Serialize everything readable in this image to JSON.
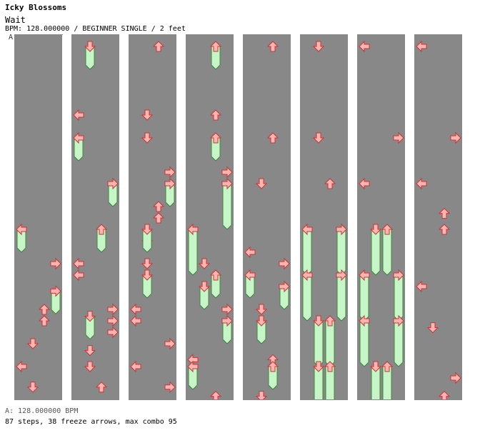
{
  "song": {
    "title": "Icky Blossoms",
    "subtitle": "Wait",
    "info": "BPM: 128.000000 / BEGINNER SINGLE / 2 feet",
    "bpm_marker_label": "A"
  },
  "footer": {
    "bpm_line": "A: 128.000000 BPM",
    "stats_line": "87 steps, 38 freeze arrows, max combo 95"
  },
  "colors": {
    "tap_fill": "#ffb4b4",
    "tap_stroke": "#cc3333",
    "freeze_fill": "#c8f5c8",
    "freeze_stroke": "#3a8a3a",
    "stripe_light": "#ffffff",
    "stripe_dark": "#cccccc"
  },
  "chart": {
    "columns": 8,
    "beats_per_column": 16,
    "lanes": [
      "left",
      "down",
      "up",
      "right"
    ],
    "notes": [
      {
        "c": 0,
        "b": 8.5,
        "l": "left",
        "len": 1
      },
      {
        "c": 0,
        "b": 10,
        "l": "right"
      },
      {
        "c": 0,
        "b": 11.2,
        "l": "right",
        "len": 1
      },
      {
        "c": 0,
        "b": 12,
        "l": "up"
      },
      {
        "c": 0,
        "b": 12.5,
        "l": "up"
      },
      {
        "c": 0,
        "b": 13.5,
        "l": "down"
      },
      {
        "c": 0,
        "b": 14.5,
        "l": "left"
      },
      {
        "c": 0,
        "b": 15.4,
        "l": "down"
      },
      {
        "c": 1,
        "b": 0.5,
        "l": "down",
        "len": 1
      },
      {
        "c": 1,
        "b": 3.5,
        "l": "left"
      },
      {
        "c": 1,
        "b": 4.5,
        "l": "left",
        "len": 1
      },
      {
        "c": 1,
        "b": 6.5,
        "l": "right",
        "len": 1
      },
      {
        "c": 1,
        "b": 12.3,
        "l": "down",
        "len": 1
      },
      {
        "c": 1,
        "b": 8.5,
        "l": "up",
        "len": 1
      },
      {
        "c": 1,
        "b": 10,
        "l": "left"
      },
      {
        "c": 1,
        "b": 10.5,
        "l": "left"
      },
      {
        "c": 1,
        "b": 12,
        "l": "right"
      },
      {
        "c": 1,
        "b": 12.5,
        "l": "right"
      },
      {
        "c": 1,
        "b": 13,
        "l": "right"
      },
      {
        "c": 1,
        "b": 13.8,
        "l": "down"
      },
      {
        "c": 1,
        "b": 14.5,
        "l": "down"
      },
      {
        "c": 1,
        "b": 15.4,
        "l": "up"
      },
      {
        "c": 2,
        "b": 0.5,
        "l": "up"
      },
      {
        "c": 2,
        "b": 3.5,
        "l": "down"
      },
      {
        "c": 2,
        "b": 4.5,
        "l": "down"
      },
      {
        "c": 2,
        "b": 6,
        "l": "right"
      },
      {
        "c": 2,
        "b": 6.5,
        "l": "right",
        "len": 1
      },
      {
        "c": 2,
        "b": 7.5,
        "l": "up"
      },
      {
        "c": 2,
        "b": 8,
        "l": "up"
      },
      {
        "c": 2,
        "b": 9,
        "l": "down"
      },
      {
        "c": 2,
        "b": 8.5,
        "l": "down",
        "len": 1
      },
      {
        "c": 2,
        "b": 10,
        "l": "down"
      },
      {
        "c": 2,
        "b": 10.5,
        "l": "down",
        "len": 1
      },
      {
        "c": 2,
        "b": 12,
        "l": "left"
      },
      {
        "c": 2,
        "b": 12.5,
        "l": "left"
      },
      {
        "c": 2,
        "b": 13.5,
        "l": "right"
      },
      {
        "c": 2,
        "b": 14.5,
        "l": "left"
      },
      {
        "c": 2,
        "b": 15.4,
        "l": "right"
      },
      {
        "c": 3,
        "b": 0.5,
        "l": "up",
        "len": 1
      },
      {
        "c": 3,
        "b": 3.5,
        "l": "up"
      },
      {
        "c": 3,
        "b": 4.5,
        "l": "up",
        "len": 1
      },
      {
        "c": 3,
        "b": 6,
        "l": "right"
      },
      {
        "c": 3,
        "b": 6.5,
        "l": "right",
        "len": 2
      },
      {
        "c": 3,
        "b": 8.5,
        "l": "left",
        "len": 2
      },
      {
        "c": 3,
        "b": 10.5,
        "l": "up",
        "len": 1
      },
      {
        "c": 3,
        "b": 10,
        "l": "down"
      },
      {
        "c": 3,
        "b": 11,
        "l": "down",
        "len": 1
      },
      {
        "c": 3,
        "b": 12,
        "l": "right"
      },
      {
        "c": 3,
        "b": 12.5,
        "l": "right",
        "len": 1
      },
      {
        "c": 3,
        "b": 14.2,
        "l": "left"
      },
      {
        "c": 3,
        "b": 14.5,
        "l": "left",
        "len": 1
      },
      {
        "c": 3,
        "b": 15.8,
        "l": "up"
      },
      {
        "c": 4,
        "b": 0.5,
        "l": "up"
      },
      {
        "c": 4,
        "b": 4.5,
        "l": "up"
      },
      {
        "c": 4,
        "b": 6.5,
        "l": "down"
      },
      {
        "c": 4,
        "b": 9.5,
        "l": "left"
      },
      {
        "c": 4,
        "b": 10.5,
        "l": "left",
        "len": 1
      },
      {
        "c": 4,
        "b": 10,
        "l": "right"
      },
      {
        "c": 4,
        "b": 11,
        "l": "right",
        "len": 1
      },
      {
        "c": 4,
        "b": 12,
        "l": "down"
      },
      {
        "c": 4,
        "b": 12.5,
        "l": "down",
        "len": 1
      },
      {
        "c": 4,
        "b": 14.2,
        "l": "up"
      },
      {
        "c": 4,
        "b": 14.5,
        "l": "up",
        "len": 1
      },
      {
        "c": 4,
        "b": 15.8,
        "l": "down"
      },
      {
        "c": 5,
        "b": 0.5,
        "l": "down"
      },
      {
        "c": 5,
        "b": 4.5,
        "l": "down"
      },
      {
        "c": 5,
        "b": 6.5,
        "l": "up"
      },
      {
        "c": 5,
        "b": 8.5,
        "l": "left",
        "len": 2
      },
      {
        "c": 5,
        "b": 8.5,
        "l": "right",
        "len": 2
      },
      {
        "c": 5,
        "b": 10.5,
        "l": "left",
        "len": 2
      },
      {
        "c": 5,
        "b": 10.5,
        "l": "right",
        "len": 2
      },
      {
        "c": 5,
        "b": 12.5,
        "l": "down",
        "len": 2
      },
      {
        "c": 5,
        "b": 12.5,
        "l": "up",
        "len": 2
      },
      {
        "c": 5,
        "b": 14.5,
        "l": "down",
        "len": 2
      },
      {
        "c": 5,
        "b": 14.5,
        "l": "up",
        "len": 2
      },
      {
        "c": 6,
        "b": 0.5,
        "l": "left"
      },
      {
        "c": 6,
        "b": 4.5,
        "l": "right"
      },
      {
        "c": 6,
        "b": 6.5,
        "l": "left"
      },
      {
        "c": 6,
        "b": 8.5,
        "l": "down",
        "len": 2
      },
      {
        "c": 6,
        "b": 8.5,
        "l": "up",
        "len": 2
      },
      {
        "c": 6,
        "b": 10.5,
        "l": "left",
        "len": 2
      },
      {
        "c": 6,
        "b": 10.5,
        "l": "right",
        "len": 2
      },
      {
        "c": 6,
        "b": 12.5,
        "l": "left",
        "len": 2
      },
      {
        "c": 6,
        "b": 12.5,
        "l": "right",
        "len": 2
      },
      {
        "c": 6,
        "b": 14.5,
        "l": "down",
        "len": 2
      },
      {
        "c": 6,
        "b": 14.5,
        "l": "up",
        "len": 2
      },
      {
        "c": 7,
        "b": 0.5,
        "l": "left"
      },
      {
        "c": 7,
        "b": 4.5,
        "l": "right"
      },
      {
        "c": 7,
        "b": 6.5,
        "l": "left"
      },
      {
        "c": 7,
        "b": 7.8,
        "l": "up"
      },
      {
        "c": 7,
        "b": 8.5,
        "l": "up"
      },
      {
        "c": 7,
        "b": 11,
        "l": "left"
      },
      {
        "c": 7,
        "b": 12.8,
        "l": "down"
      },
      {
        "c": 7,
        "b": 15,
        "l": "right"
      },
      {
        "c": 7,
        "b": 15.8,
        "l": "up"
      }
    ]
  }
}
